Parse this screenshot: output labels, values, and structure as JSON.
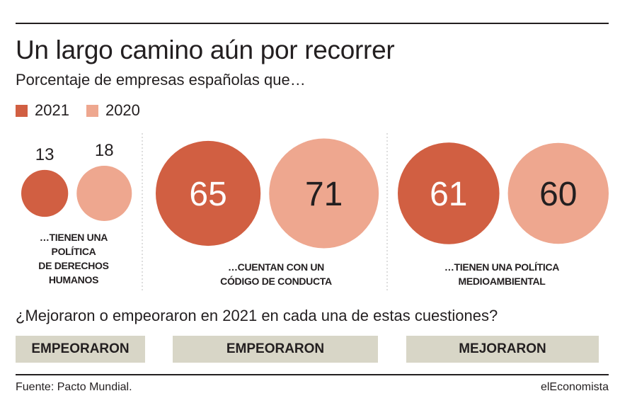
{
  "title": "Un largo camino aún por recorrer",
  "subtitle": "Porcentaje de empresas españolas que…",
  "chart_data": {
    "type": "bubble",
    "series": [
      {
        "name": "2021",
        "color": "#d15f42",
        "values": [
          13,
          65,
          61
        ]
      },
      {
        "name": "2020",
        "color": "#eea78f",
        "values": [
          18,
          71,
          60
        ]
      }
    ],
    "categories": [
      [
        "…TIENEN UNA",
        "POLÍTICA",
        "DE DERECHOS",
        "HUMANOS"
      ],
      [
        "…CUENTAN CON UN",
        "CÓDIGO DE CONDUCTA"
      ],
      [
        "…TIENEN UNA POLÍTICA",
        "MEDIOAMBIENTAL"
      ]
    ]
  },
  "question": "¿Mejoraron o empeoraron en 2021 en cada una de estas cuestiones?",
  "answers": [
    "EMPEORARON",
    "EMPEORARON",
    "MEJORARON"
  ],
  "source": "Fuente: Pacto Mundial.",
  "brand": "elEconomista"
}
